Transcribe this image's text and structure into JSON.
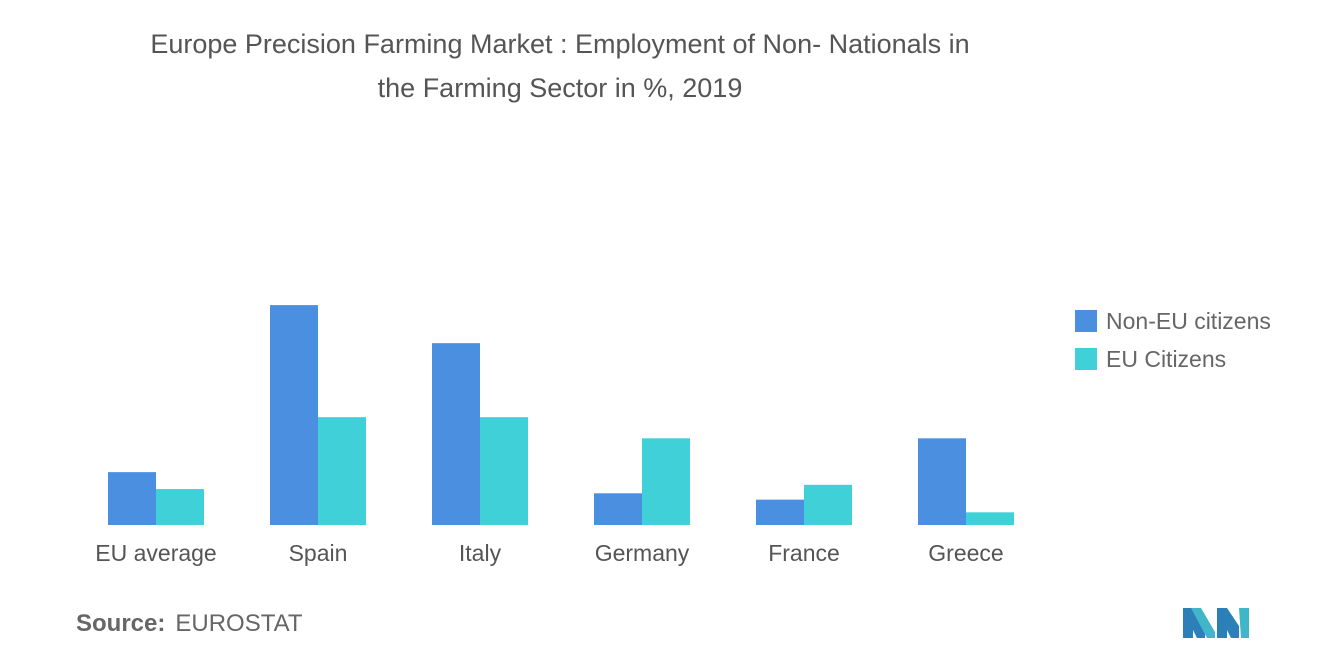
{
  "title_line1": "Europe Precision Farming Market : Employment of Non- Nationals in",
  "title_line2": "the Farming Sector in %, 2019",
  "source_label": "Source:",
  "source_value": "EUROSTAT",
  "logo_icon": "mordor-intelligence-logo-icon",
  "colors": {
    "non_eu": "#4a8fe0",
    "eu": "#3fd0d8",
    "text": "#555555"
  },
  "chart_data": {
    "type": "bar",
    "title": "Europe Precision Farming Market : Employment of Non- Nationals in the Farming Sector in %, 2019",
    "categories": [
      "EU average",
      "Spain",
      "Italy",
      "Germany",
      "France",
      "Greece"
    ],
    "series": [
      {
        "name": "Non-EU citizens",
        "color": "#4a8fe0",
        "values": [
          2.5,
          10.4,
          8.6,
          1.5,
          1.2,
          4.1
        ]
      },
      {
        "name": "EU Citizens",
        "color": "#3fd0d8",
        "values": [
          1.7,
          5.1,
          5.1,
          4.1,
          1.9,
          0.6
        ]
      }
    ],
    "ylim": [
      0,
      10.5
    ],
    "legend_position": "right",
    "grid": false
  }
}
